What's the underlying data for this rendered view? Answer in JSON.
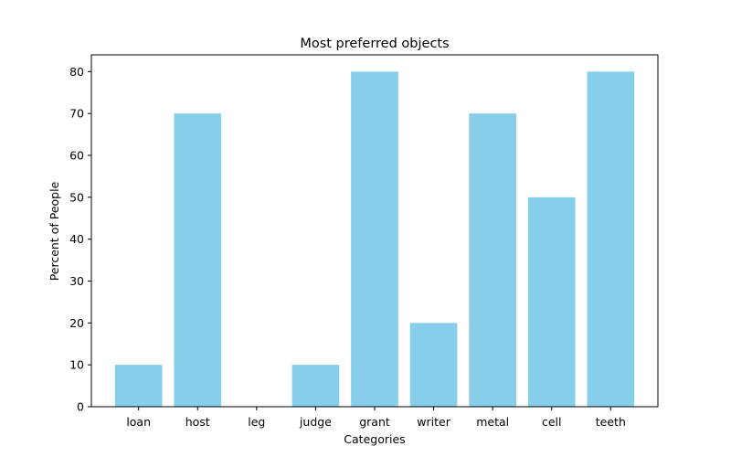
{
  "chart_data": {
    "type": "bar",
    "title": "Most preferred objects",
    "xlabel": "Categories",
    "ylabel": "Percent of People",
    "categories": [
      "loan",
      "host",
      "leg",
      "judge",
      "grant",
      "writer",
      "metal",
      "cell",
      "teeth"
    ],
    "values": [
      10,
      70,
      0,
      10,
      80,
      20,
      70,
      50,
      80
    ],
    "ylim": [
      0,
      84
    ],
    "yticks": [
      0,
      10,
      20,
      30,
      40,
      50,
      60,
      70,
      80
    ],
    "bar_color": "#87CEEB",
    "grid": false,
    "legend": "none"
  }
}
